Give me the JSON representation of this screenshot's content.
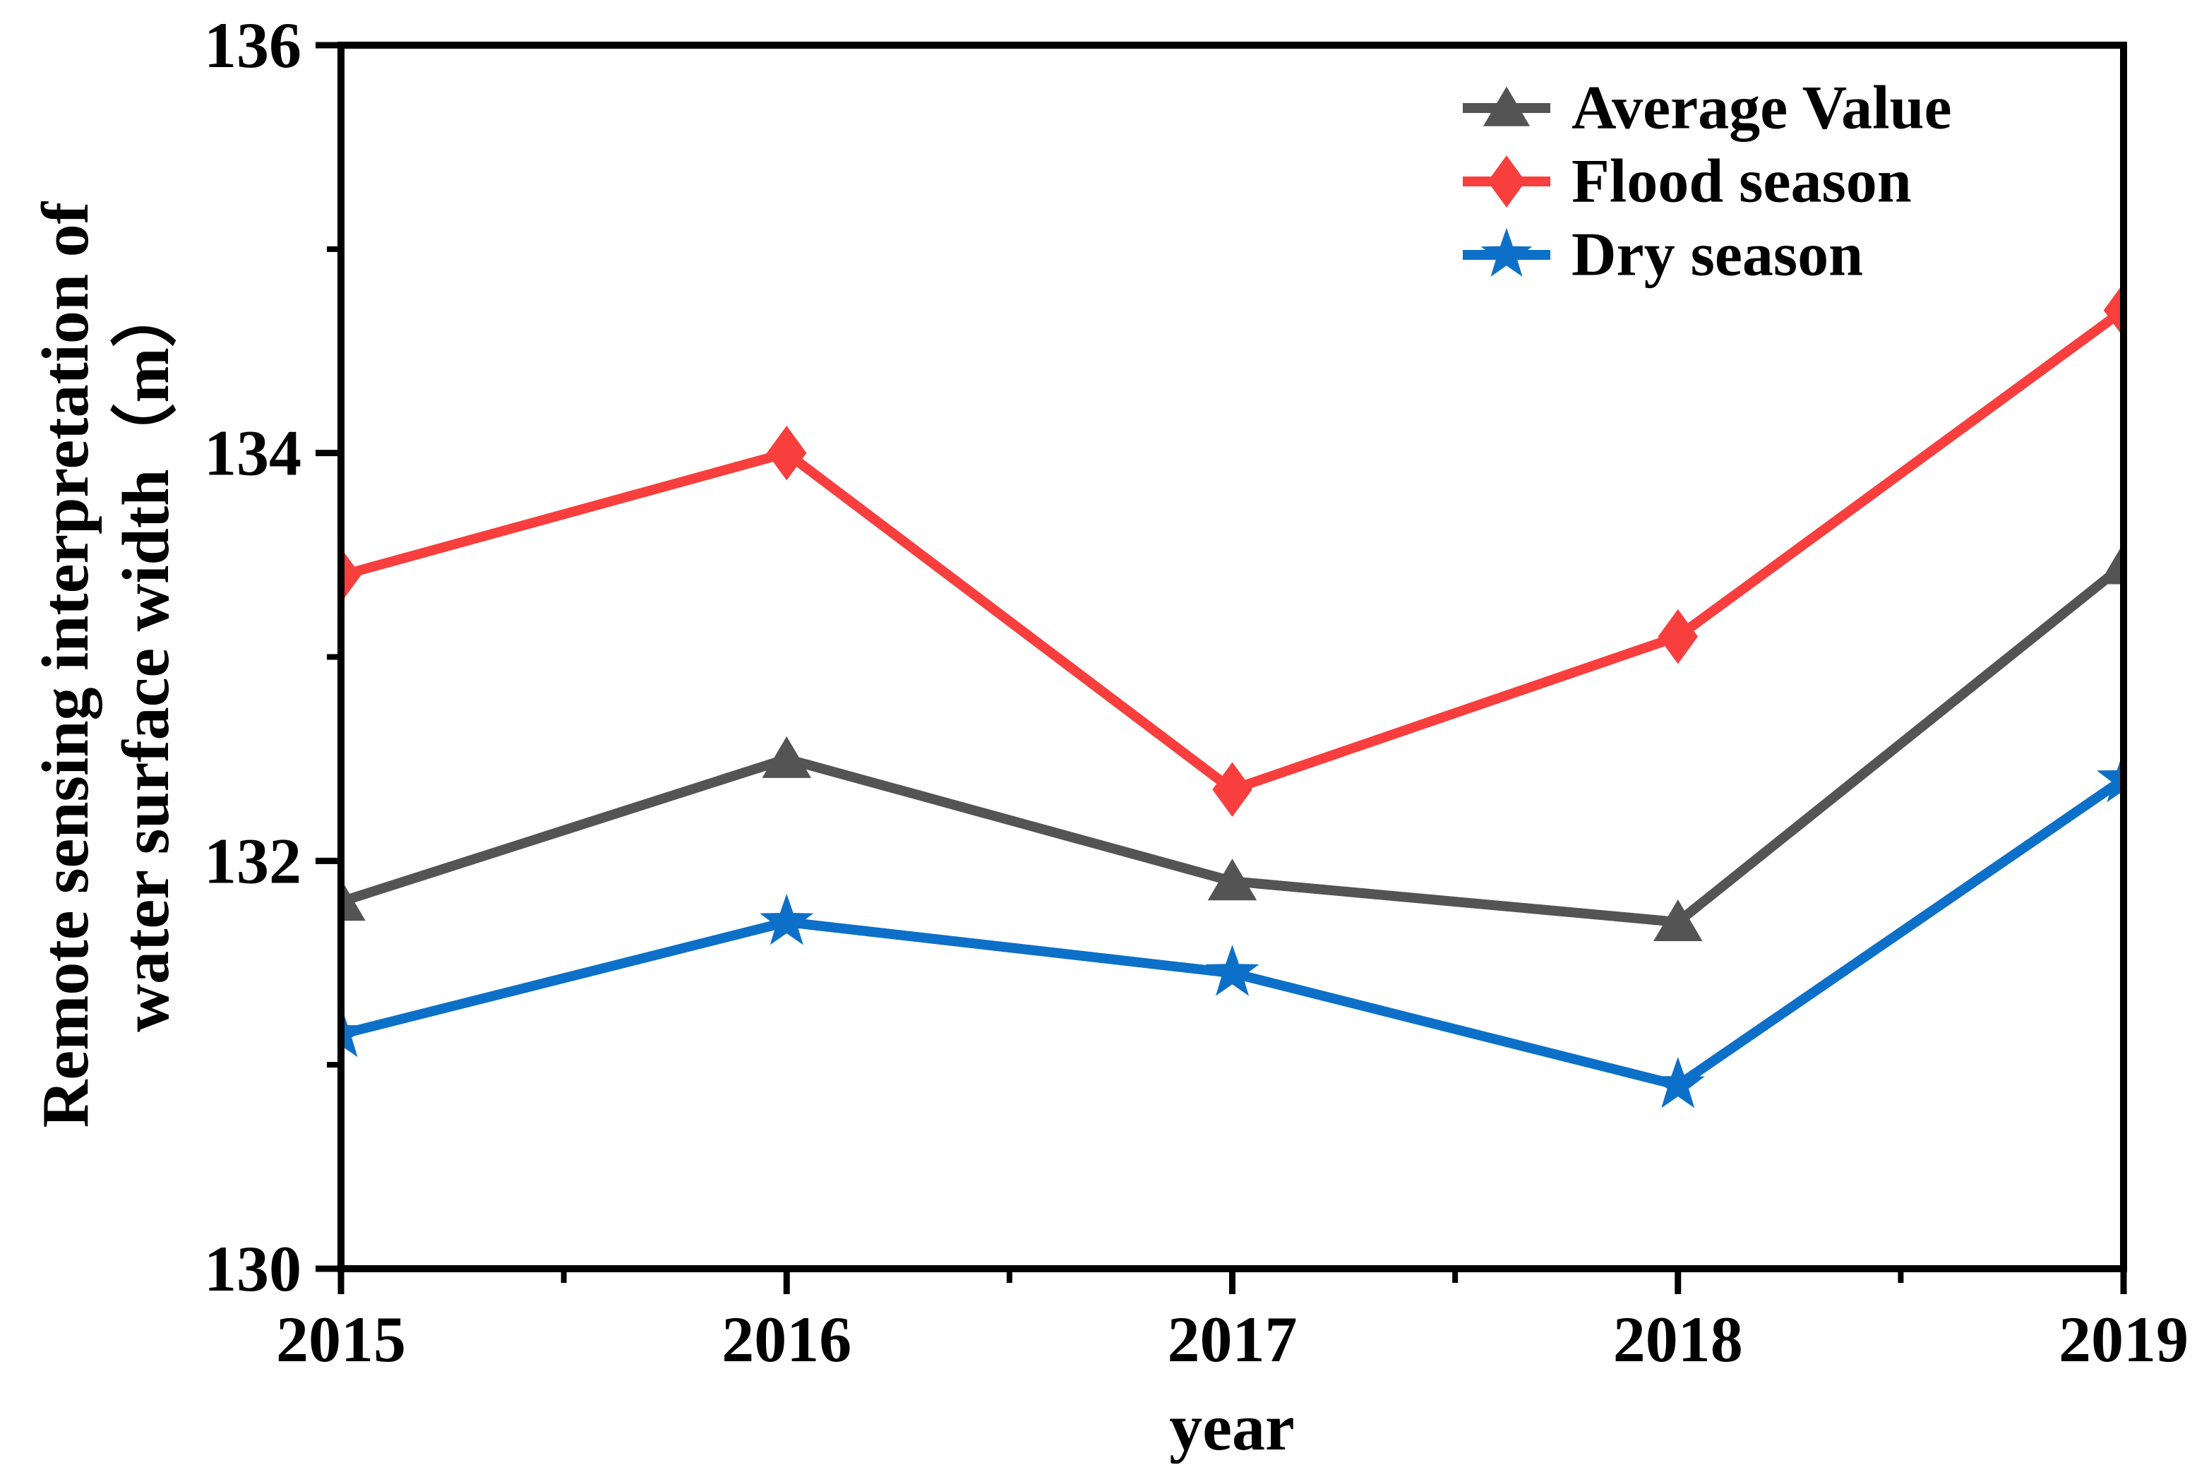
{
  "figure": {
    "background": "#ffffff",
    "axis_color": "#000000"
  },
  "y_axis": {
    "label_line1": "Remote sensing interpretation of",
    "label_line2": "water surface width（m）",
    "major_ticks": [
      "136",
      "134",
      "132",
      "130"
    ],
    "minor_ticks": [
      135,
      133,
      131
    ],
    "range": [
      130,
      136
    ]
  },
  "x_axis": {
    "label": "year",
    "ticks": [
      "2015",
      "2016",
      "2017",
      "2018",
      "2019"
    ]
  },
  "legend": {
    "position": "top-right",
    "items": [
      {
        "label": "Average Value",
        "color": "#545454",
        "marker": "triangle-icon"
      },
      {
        "label": "Flood season",
        "color": "#F93E3E",
        "marker": "diamond-icon"
      },
      {
        "label": "Dry season",
        "color": "#0D70C8",
        "marker": "star-icon"
      }
    ]
  },
  "chart_data": {
    "type": "line",
    "x": [
      2015,
      2016,
      2017,
      2018,
      2019
    ],
    "series": [
      {
        "name": "Average Value",
        "marker": "triangle",
        "color": "#545454",
        "values": [
          131.8,
          132.5,
          131.9,
          131.7,
          133.45
        ]
      },
      {
        "name": "Flood season",
        "marker": "diamond",
        "color": "#F93E3E",
        "values": [
          133.4,
          134.0,
          132.35,
          133.1,
          134.7
        ]
      },
      {
        "name": "Dry season",
        "marker": "star",
        "color": "#0D70C8",
        "values": [
          131.15,
          131.7,
          131.45,
          130.9,
          132.4
        ]
      }
    ],
    "title": "",
    "xlabel": "year",
    "ylabel": "Remote sensing interpretation of water surface width（m）",
    "ylim": [
      130,
      136
    ],
    "xlim": [
      2015,
      2019
    ],
    "y_major_step": 2,
    "y_minor_step": 1,
    "grid": false,
    "legend_position": "top-right"
  }
}
